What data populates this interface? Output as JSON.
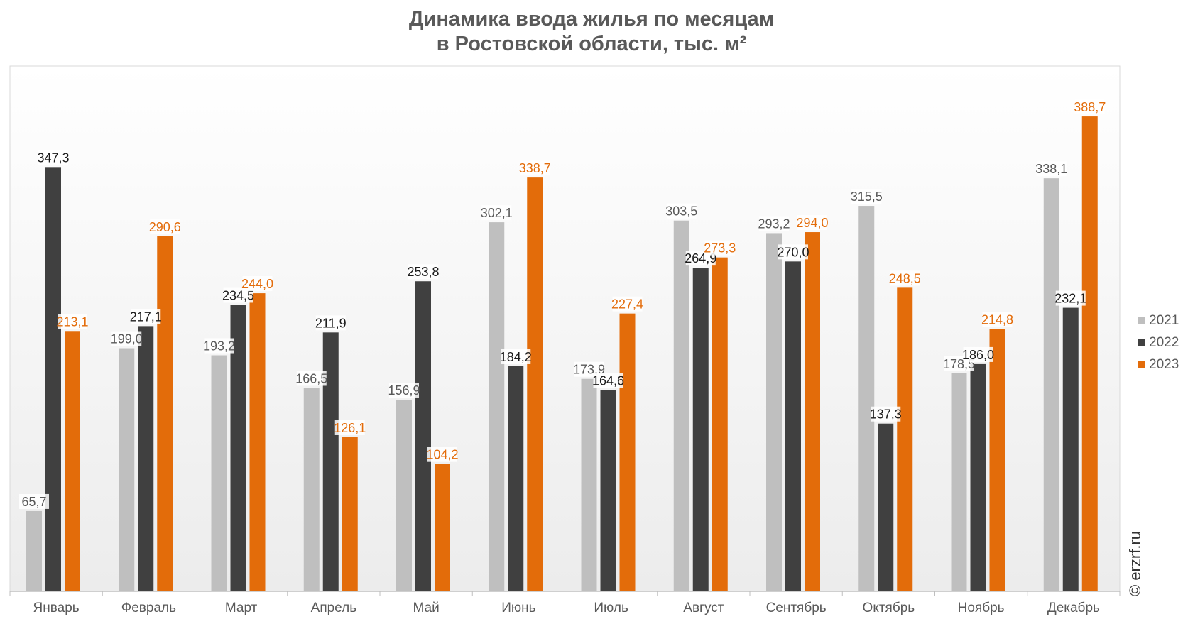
{
  "title": {
    "line1": "Динамика ввода жилья по месяцам",
    "line2": "в Ростовской области, тыс. м²"
  },
  "watermark": "© erzrf.ru",
  "colors": {
    "2021": "#bfbfbf",
    "2022": "#404040",
    "2023": "#e36c0a",
    "label_2021": "#595959",
    "label_2022": "#1a1a1a",
    "label_2023": "#e36c0a"
  },
  "chart_data": {
    "type": "bar",
    "title": "Динамика ввода жилья по месяцам в Ростовской области, тыс. м²",
    "categories": [
      "Январь",
      "Февраль",
      "Март",
      "Апрель",
      "Май",
      "Июнь",
      "Июль",
      "Август",
      "Сентябрь",
      "Октябрь",
      "Ноябрь",
      "Декабрь"
    ],
    "series": [
      {
        "name": "2021",
        "values": [
          65.7,
          199.0,
          193.2,
          166.5,
          156.9,
          302.1,
          173.9,
          303.5,
          293.2,
          315.5,
          178.5,
          338.1
        ]
      },
      {
        "name": "2022",
        "values": [
          347.3,
          217.1,
          234.5,
          211.9,
          253.8,
          184.2,
          164.6,
          264.9,
          270.0,
          137.3,
          186.0,
          232.1
        ]
      },
      {
        "name": "2023",
        "values": [
          213.1,
          290.6,
          244.0,
          126.1,
          104.2,
          338.7,
          227.4,
          273.3,
          294.0,
          248.5,
          214.8,
          388.7
        ]
      }
    ],
    "data_labels": [
      [
        "65,7",
        "199,0",
        "193,2",
        "166,5",
        "156,9",
        "302,1",
        "173,9",
        "303,5",
        "293,2",
        "315,5",
        "178,5",
        "338,1"
      ],
      [
        "347,3",
        "217,1",
        "234,5",
        "211,9",
        "253,8",
        "184,2",
        "164,6",
        "264,9",
        "270,0",
        "137,3",
        "186,0",
        "232,1"
      ],
      [
        "213,1",
        "290,6",
        "244,0",
        "126,1",
        "104,2",
        "338,7",
        "227,4",
        "273,3",
        "294,0",
        "248,5",
        "214,8",
        "388,7"
      ]
    ],
    "ylim": [
      0,
      430
    ],
    "grid": false,
    "legend_position": "right"
  }
}
